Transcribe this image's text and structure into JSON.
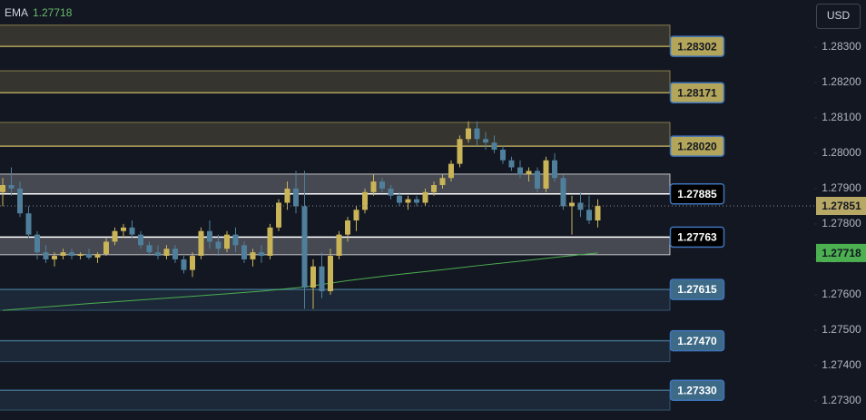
{
  "chart_data": {
    "type": "candlestick",
    "currency": "USD",
    "ylim": [
      1.27246,
      1.28433
    ],
    "yticks": [
      {
        "value": 1.283,
        "label": "1.28300"
      },
      {
        "value": 1.282,
        "label": "1.28200"
      },
      {
        "value": 1.281,
        "label": "1.28100"
      },
      {
        "value": 1.28,
        "label": "1.28000"
      },
      {
        "value": 1.279,
        "label": "1.27900"
      },
      {
        "value": 1.278,
        "label": "1.27800"
      },
      {
        "value": 1.277,
        "label": "1.27700"
      },
      {
        "value": 1.276,
        "label": "1.27600"
      },
      {
        "value": 1.275,
        "label": "1.27500"
      },
      {
        "value": 1.274,
        "label": "1.27400"
      },
      {
        "value": 1.273,
        "label": "1.27300"
      }
    ],
    "up_color": "#c9b458",
    "down_color": "#4f7f9a",
    "candles": [
      [
        1.2789,
        1.2793,
        1.2785,
        1.2791
      ],
      [
        1.2791,
        1.2796,
        1.2788,
        1.279
      ],
      [
        1.279,
        1.2792,
        1.2782,
        1.2783
      ],
      [
        1.2783,
        1.2785,
        1.2776,
        1.2777
      ],
      [
        1.2777,
        1.2778,
        1.277,
        1.2772
      ],
      [
        1.2772,
        1.2774,
        1.2769,
        1.277
      ],
      [
        1.277,
        1.2772,
        1.2768,
        1.2771
      ],
      [
        1.2771,
        1.2773,
        1.277,
        1.2772
      ],
      [
        1.2772,
        1.2773,
        1.277,
        1.2771
      ],
      [
        1.2771,
        1.2772,
        1.277,
        1.27715
      ],
      [
        1.27715,
        1.2773,
        1.277,
        1.27705
      ],
      [
        1.27705,
        1.2772,
        1.2769,
        1.27715
      ],
      [
        1.27715,
        1.2776,
        1.2771,
        1.2775
      ],
      [
        1.2775,
        1.2779,
        1.2774,
        1.2778
      ],
      [
        1.2778,
        1.278,
        1.2776,
        1.2779
      ],
      [
        1.2779,
        1.2781,
        1.2776,
        1.2777
      ],
      [
        1.2777,
        1.2778,
        1.2773,
        1.2774
      ],
      [
        1.2774,
        1.2775,
        1.2771,
        1.2772
      ],
      [
        1.2772,
        1.2774,
        1.277,
        1.2771
      ],
      [
        1.2771,
        1.2774,
        1.277,
        1.2773
      ],
      [
        1.2773,
        1.2774,
        1.2769,
        1.277
      ],
      [
        1.277,
        1.2771,
        1.2766,
        1.2767
      ],
      [
        1.2767,
        1.2772,
        1.2765,
        1.2771
      ],
      [
        1.2771,
        1.2779,
        1.277,
        1.2778
      ],
      [
        1.2778,
        1.2781,
        1.2773,
        1.2775
      ],
      [
        1.2775,
        1.2777,
        1.2771,
        1.2773
      ],
      [
        1.2773,
        1.2778,
        1.2772,
        1.2777
      ],
      [
        1.2777,
        1.2779,
        1.2772,
        1.2774
      ],
      [
        1.2774,
        1.2775,
        1.2769,
        1.277
      ],
      [
        1.277,
        1.2773,
        1.2768,
        1.2772
      ],
      [
        1.2772,
        1.2774,
        1.2769,
        1.2771
      ],
      [
        1.2771,
        1.278,
        1.277,
        1.2779
      ],
      [
        1.2779,
        1.2787,
        1.2778,
        1.2786
      ],
      [
        1.2786,
        1.2792,
        1.2784,
        1.279
      ],
      [
        1.279,
        1.2795,
        1.2783,
        1.2785
      ],
      [
        1.2785,
        1.2795,
        1.2756,
        1.2762
      ],
      [
        1.2762,
        1.277,
        1.2756,
        1.2768
      ],
      [
        1.2768,
        1.2772,
        1.2759,
        1.2761
      ],
      [
        1.2761,
        1.2773,
        1.276,
        1.2771
      ],
      [
        1.2771,
        1.2778,
        1.277,
        1.2777
      ],
      [
        1.2777,
        1.2782,
        1.2775,
        1.2781
      ],
      [
        1.2781,
        1.2785,
        1.2778,
        1.2784
      ],
      [
        1.2784,
        1.279,
        1.2783,
        1.2789
      ],
      [
        1.2789,
        1.2794,
        1.2788,
        1.2792
      ],
      [
        1.2792,
        1.2793,
        1.2789,
        1.279
      ],
      [
        1.279,
        1.2791,
        1.2787,
        1.2788
      ],
      [
        1.2788,
        1.2789,
        1.2785,
        1.2786
      ],
      [
        1.2786,
        1.2788,
        1.2784,
        1.2787
      ],
      [
        1.2787,
        1.2788,
        1.2785,
        1.2786
      ],
      [
        1.2786,
        1.279,
        1.2785,
        1.2789
      ],
      [
        1.2789,
        1.2792,
        1.2788,
        1.2791
      ],
      [
        1.2791,
        1.2794,
        1.279,
        1.2793
      ],
      [
        1.2793,
        1.2798,
        1.2792,
        1.2797
      ],
      [
        1.2797,
        1.2805,
        1.2796,
        1.2804
      ],
      [
        1.2804,
        1.2809,
        1.2803,
        1.2807
      ],
      [
        1.2807,
        1.2809,
        1.2802,
        1.2804
      ],
      [
        1.2804,
        1.2806,
        1.2801,
        1.2803
      ],
      [
        1.2803,
        1.2805,
        1.28,
        1.2801
      ],
      [
        1.2801,
        1.2802,
        1.2797,
        1.2798
      ],
      [
        1.2798,
        1.2799,
        1.2795,
        1.2796
      ],
      [
        1.2796,
        1.2798,
        1.2793,
        1.2794
      ],
      [
        1.2794,
        1.2796,
        1.2792,
        1.2795
      ],
      [
        1.2795,
        1.2796,
        1.2789,
        1.279
      ],
      [
        1.279,
        1.2799,
        1.2789,
        1.2798
      ],
      [
        1.2798,
        1.28,
        1.2792,
        1.2793
      ],
      [
        1.2793,
        1.2794,
        1.2784,
        1.2785
      ],
      [
        1.2785,
        1.2788,
        1.2777,
        1.2786
      ],
      [
        1.2786,
        1.2789,
        1.2782,
        1.2784
      ],
      [
        1.2784,
        1.2788,
        1.278,
        1.2781
      ],
      [
        1.2781,
        1.2787,
        1.2779,
        1.27851
      ]
    ],
    "current_price": 1.27851,
    "current_color": "#b8a866",
    "ema": {
      "name": "EMA",
      "color": "#4caf50",
      "x": [
        0,
        10,
        20,
        30,
        35,
        40,
        45,
        50,
        55,
        60,
        65,
        69
      ],
      "values": [
        1.27556,
        1.27575,
        1.27592,
        1.2761,
        1.27622,
        1.2764,
        1.27655,
        1.27668,
        1.27682,
        1.27695,
        1.27708,
        1.27718
      ]
    },
    "zones": {
      "levels": [
        1.28302,
        1.28171,
        1.2802,
        1.27885,
        1.27763,
        1.27615,
        1.2747,
        1.2733
      ],
      "value_labels": [
        "1.28302",
        "1.28171",
        "1.28020",
        "1.27885",
        "1.27763",
        "1.27615",
        "1.27470",
        "1.27330"
      ],
      "edges": [
        1.28362,
        1.28233,
        1.28087,
        1.27941,
        1.27713,
        1.27556,
        1.27411,
        1.27274
      ],
      "colors": [
        "#b0a15a",
        "#b0a15a",
        "#b0a15a",
        "#ffffff",
        "#ffffff",
        "#3f6a86",
        "#3f6a86",
        "#3f6a86"
      ],
      "label_colors": [
        "#b3a55a",
        "#b3a55a",
        "#b3a55a",
        "#000000",
        "#000000",
        "#3d6a87",
        "#3d6a87",
        "#3d6a87"
      ]
    }
  }
}
